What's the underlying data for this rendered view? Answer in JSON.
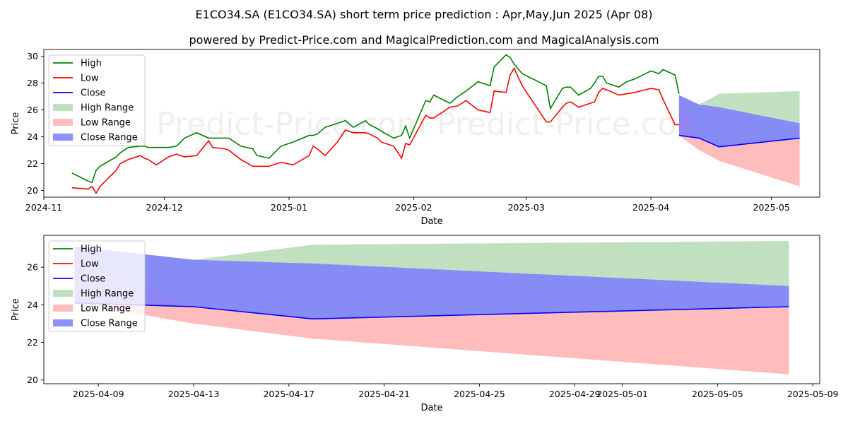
{
  "titles": {
    "line1": "E1CO34.SA (E1CO34.SA) short term price prediction : Apr,May,Jun 2025 (Apr 08)",
    "line2": "powered by Predict-Price.com and MagicalPrediction.com and MagicalAnalysis.com"
  },
  "watermark": "Predict-Price.com",
  "colors": {
    "high": "#008000",
    "low": "#ff0000",
    "close": "#0000ff",
    "high_range": "#c0e0c0",
    "low_range": "#ffbcbc",
    "close_range": "#7b7bff"
  },
  "legend": [
    "High",
    "Low",
    "Close",
    "High Range",
    "Low Range",
    "Close Range"
  ],
  "chart_data": [
    {
      "type": "line",
      "xlabel": "Date",
      "ylabel": "Price",
      "xlim": [
        "2024-11-01",
        "2025-05-13"
      ],
      "ylim": [
        19.5,
        30.5
      ],
      "xticks": [
        "2024-11",
        "2024-12",
        "2025-01",
        "2025-02",
        "2025-03",
        "2025-04",
        "2025-05"
      ],
      "yticks": [
        20,
        22,
        24,
        26,
        28,
        30
      ],
      "legend_position": "upper-left",
      "series": [
        {
          "name": "High",
          "x": [
            "2024-11-08",
            "2024-11-12",
            "2024-11-13",
            "2024-11-14",
            "2024-11-15",
            "2024-11-19",
            "2024-11-20",
            "2024-11-22",
            "2024-11-25",
            "2024-11-26",
            "2024-11-27",
            "2024-11-29",
            "2024-12-02",
            "2024-12-04",
            "2024-12-06",
            "2024-12-09",
            "2024-12-12",
            "2024-12-13",
            "2024-12-16",
            "2024-12-17",
            "2024-12-20",
            "2024-12-23",
            "2024-12-24",
            "2024-12-27",
            "2024-12-30",
            "2025-01-02",
            "2025-01-06",
            "2025-01-07",
            "2025-01-08",
            "2025-01-10",
            "2025-01-13",
            "2025-01-15",
            "2025-01-17",
            "2025-01-20",
            "2025-01-21",
            "2025-01-23",
            "2025-01-24",
            "2025-01-27",
            "2025-01-29",
            "2025-01-30",
            "2025-01-31",
            "2025-02-04",
            "2025-02-05",
            "2025-02-06",
            "2025-02-10",
            "2025-02-12",
            "2025-02-13",
            "2025-02-14",
            "2025-02-17",
            "2025-02-20",
            "2025-02-21",
            "2025-02-24",
            "2025-02-25",
            "2025-02-26",
            "2025-02-28",
            "2025-03-06",
            "2025-03-07",
            "2025-03-10",
            "2025-03-11",
            "2025-03-12",
            "2025-03-14",
            "2025-03-17",
            "2025-03-18",
            "2025-03-19",
            "2025-03-20",
            "2025-03-21",
            "2025-03-24",
            "2025-03-26",
            "2025-03-28",
            "2025-04-01",
            "2025-04-03",
            "2025-04-04",
            "2025-04-07",
            "2025-04-08"
          ],
          "values": [
            21.3,
            20.7,
            20.6,
            21.5,
            21.8,
            22.5,
            22.8,
            23.2,
            23.3,
            23.3,
            23.2,
            23.2,
            23.2,
            23.3,
            23.9,
            24.3,
            23.9,
            23.9,
            23.9,
            23.9,
            23.3,
            23.1,
            22.6,
            22.4,
            23.3,
            23.6,
            24.1,
            24.1,
            24.2,
            24.7,
            25.0,
            25.2,
            24.7,
            25.2,
            24.9,
            24.6,
            24.4,
            23.9,
            24.1,
            24.8,
            23.9,
            26.7,
            26.6,
            27.1,
            26.5,
            27.0,
            27.2,
            27.4,
            28.1,
            27.8,
            29.2,
            30.1,
            29.9,
            29.4,
            28.7,
            27.8,
            26.1,
            27.6,
            27.7,
            27.7,
            27.1,
            27.6,
            28.0,
            28.5,
            28.5,
            28.0,
            27.7,
            28.1,
            28.3,
            28.9,
            28.7,
            29.0,
            28.6,
            27.2
          ]
        },
        {
          "name": "Low",
          "x": [
            "2024-11-08",
            "2024-11-12",
            "2024-11-13",
            "2024-11-14",
            "2024-11-15",
            "2024-11-19",
            "2024-11-20",
            "2024-11-22",
            "2024-11-25",
            "2024-11-26",
            "2024-11-27",
            "2024-11-29",
            "2024-12-02",
            "2024-12-04",
            "2024-12-06",
            "2024-12-09",
            "2024-12-12",
            "2024-12-13",
            "2024-12-16",
            "2024-12-17",
            "2024-12-20",
            "2024-12-23",
            "2024-12-24",
            "2024-12-27",
            "2024-12-30",
            "2025-01-02",
            "2025-01-06",
            "2025-01-07",
            "2025-01-08",
            "2025-01-10",
            "2025-01-13",
            "2025-01-15",
            "2025-01-17",
            "2025-01-20",
            "2025-01-21",
            "2025-01-23",
            "2025-01-24",
            "2025-01-27",
            "2025-01-29",
            "2025-01-30",
            "2025-01-31",
            "2025-02-04",
            "2025-02-05",
            "2025-02-06",
            "2025-02-10",
            "2025-02-12",
            "2025-02-13",
            "2025-02-14",
            "2025-02-17",
            "2025-02-20",
            "2025-02-21",
            "2025-02-24",
            "2025-02-25",
            "2025-02-26",
            "2025-02-28",
            "2025-03-06",
            "2025-03-07",
            "2025-03-10",
            "2025-03-11",
            "2025-03-12",
            "2025-03-14",
            "2025-03-17",
            "2025-03-18",
            "2025-03-19",
            "2025-03-20",
            "2025-03-21",
            "2025-03-24",
            "2025-03-26",
            "2025-03-28",
            "2025-04-01",
            "2025-04-03",
            "2025-04-04",
            "2025-04-07",
            "2025-04-08"
          ],
          "values": [
            20.2,
            20.1,
            20.3,
            19.8,
            20.3,
            21.5,
            22.0,
            22.3,
            22.6,
            22.4,
            22.3,
            21.9,
            22.5,
            22.7,
            22.5,
            22.6,
            23.7,
            23.2,
            23.1,
            23.0,
            22.3,
            21.8,
            21.8,
            21.8,
            22.1,
            21.9,
            22.6,
            23.3,
            23.1,
            22.6,
            23.6,
            24.5,
            24.3,
            24.3,
            24.2,
            23.9,
            23.6,
            23.3,
            22.4,
            23.5,
            23.4,
            25.6,
            25.4,
            25.4,
            26.2,
            26.3,
            26.5,
            26.7,
            26.0,
            25.8,
            27.4,
            27.3,
            28.6,
            29.1,
            27.8,
            25.1,
            25.1,
            26.2,
            26.5,
            26.6,
            26.2,
            26.5,
            26.6,
            27.3,
            27.6,
            27.5,
            27.1,
            27.2,
            27.3,
            27.6,
            27.5,
            26.8,
            24.9,
            24.9
          ]
        },
        {
          "name": "Close",
          "x": [
            "2025-04-08",
            "2025-04-13",
            "2025-04-18",
            "2025-05-08"
          ],
          "values": [
            24.1,
            23.9,
            23.25,
            23.9
          ]
        },
        {
          "name": "High Range",
          "x": [
            "2025-04-08",
            "2025-04-13",
            "2025-04-18",
            "2025-05-08"
          ],
          "lower": [
            24.1,
            23.9,
            23.25,
            23.9
          ],
          "upper": [
            27.1,
            26.4,
            27.2,
            27.4
          ]
        },
        {
          "name": "Low Range",
          "x": [
            "2025-04-08",
            "2025-04-13",
            "2025-04-18",
            "2025-05-08"
          ],
          "lower": [
            24.1,
            23.0,
            22.2,
            20.3
          ],
          "upper": [
            27.1,
            23.9,
            23.25,
            23.9
          ]
        },
        {
          "name": "Close Range",
          "x": [
            "2025-04-08",
            "2025-04-13",
            "2025-04-18",
            "2025-05-08"
          ],
          "lower": [
            24.1,
            23.9,
            23.25,
            23.9
          ],
          "upper": [
            27.1,
            26.4,
            26.2,
            25.0
          ]
        }
      ]
    },
    {
      "type": "line",
      "xlabel": "Date",
      "ylabel": "Price",
      "xlim": [
        "2025-04-06 17:00",
        "2025-05-09 07:00"
      ],
      "ylim": [
        19.8,
        27.7
      ],
      "xticks": [
        "2025-04-09",
        "2025-04-13",
        "2025-04-17",
        "2025-04-21",
        "2025-04-25",
        "2025-04-29",
        "2025-05-01",
        "2025-05-05",
        "2025-05-09"
      ],
      "yticks": [
        20,
        22,
        24,
        26
      ],
      "legend_position": "upper-left",
      "series": [
        {
          "name": "Close",
          "x": [
            "2025-04-08",
            "2025-04-13",
            "2025-04-18",
            "2025-05-08"
          ],
          "values": [
            24.1,
            23.9,
            23.25,
            23.9
          ]
        },
        {
          "name": "High Range",
          "x": [
            "2025-04-08",
            "2025-04-13",
            "2025-04-18",
            "2025-05-08"
          ],
          "lower": [
            24.1,
            23.9,
            23.25,
            23.9
          ],
          "upper": [
            27.1,
            26.4,
            27.2,
            27.4
          ]
        },
        {
          "name": "Low Range",
          "x": [
            "2025-04-08",
            "2025-04-13",
            "2025-04-18",
            "2025-05-08"
          ],
          "lower": [
            24.1,
            23.0,
            22.2,
            20.3
          ],
          "upper": [
            27.1,
            23.9,
            23.25,
            23.9
          ]
        },
        {
          "name": "Close Range",
          "x": [
            "2025-04-08",
            "2025-04-13",
            "2025-04-18",
            "2025-05-08"
          ],
          "lower": [
            24.1,
            23.9,
            23.25,
            23.9
          ],
          "upper": [
            27.1,
            26.4,
            26.2,
            25.0
          ]
        }
      ]
    }
  ]
}
